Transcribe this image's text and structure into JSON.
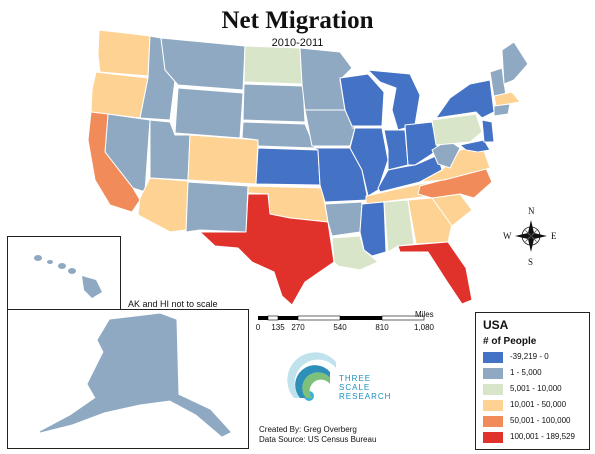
{
  "title": "Net Migration",
  "subtitle": "2010-2011",
  "inset_note": "AK and HI not to scale",
  "legend": {
    "country": "USA",
    "heading": "# of People",
    "classes": [
      {
        "label": "-39,219 - 0",
        "color": "#4472c4"
      },
      {
        "label": "1 - 5,000",
        "color": "#8ea9c1"
      },
      {
        "label": "5,001 - 10,000",
        "color": "#d9e5c8"
      },
      {
        "label": "10,001 - 50,000",
        "color": "#fdd293"
      },
      {
        "label": "50,001 - 100,000",
        "color": "#f28b5a"
      },
      {
        "label": "100,001 - 189,529",
        "color": "#e0312b"
      }
    ]
  },
  "scale_bar": {
    "unit": "Miles",
    "ticks": [
      "0",
      "135",
      "270",
      "540",
      "810",
      "1,080"
    ]
  },
  "credits": {
    "created_by": "Created By: Greg Overberg",
    "data_source": "Data Source: US Census Bureau"
  },
  "logo": {
    "line1": "THREE",
    "line2": "SCALE",
    "line3": "RESEARCH"
  },
  "compass": {
    "n": "N",
    "s": "S",
    "e": "E",
    "w": "W"
  }
}
